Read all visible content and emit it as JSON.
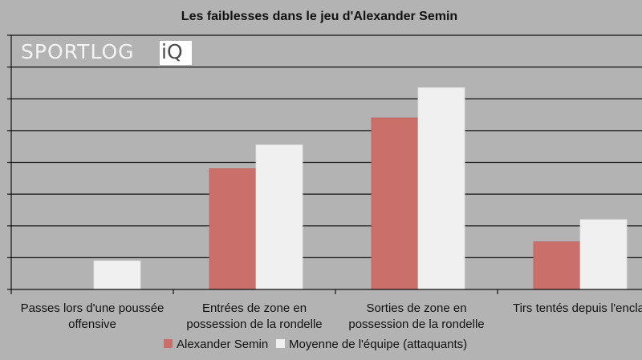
{
  "chart_data": {
    "type": "bar",
    "title": "Les faiblesses dans le jeu d'Alexander Semin",
    "categories": [
      [
        "Passes lors d'une poussée",
        "offensive"
      ],
      [
        "Entrées de zone en",
        "possession de la rondelle"
      ],
      [
        "Sorties de zone en",
        "possession de la rondelle"
      ],
      [
        "Tirs tentés depuis l'encla",
        ""
      ]
    ],
    "ylim": [
      0,
      8
    ],
    "grid": true,
    "legend_position": "bottom",
    "series": [
      {
        "name": "Alexander Semin",
        "color": "#cb6f6b",
        "values": [
          0,
          3.8,
          5.4,
          1.5
        ]
      },
      {
        "name": "Moyenne de l'équipe (attaquants)",
        "color": "#f0f0f0",
        "values": [
          0.9,
          4.55,
          6.35,
          2.2
        ]
      }
    ]
  },
  "watermark": {
    "light_part": "SPORTLOG",
    "boxed_part": "iQ"
  }
}
